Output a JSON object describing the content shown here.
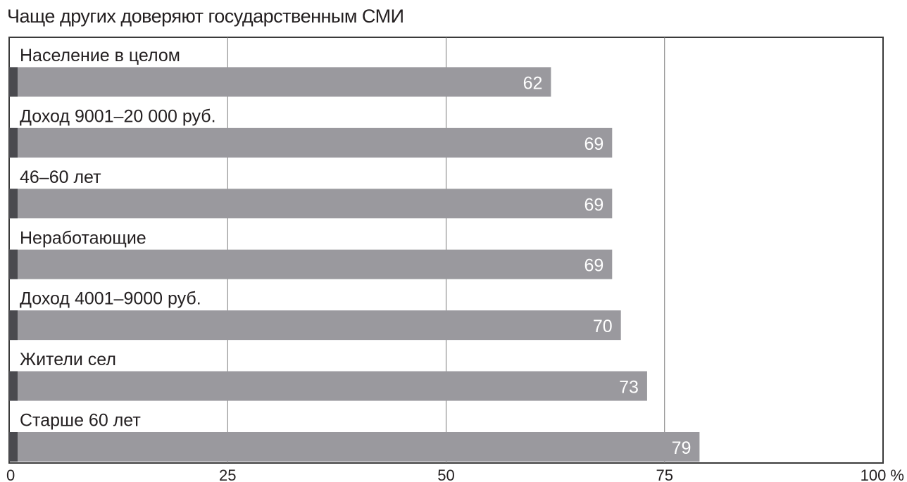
{
  "chart_data": {
    "type": "bar",
    "orientation": "horizontal",
    "title": "Чаще других доверяют государственным СМИ",
    "categories": [
      "Население в целом",
      "Доход 9001–20 000 руб.",
      "46–60 лет",
      "Неработающие",
      "Доход 4001–9000 руб.",
      "Жители сел",
      "Старше 60 лет"
    ],
    "values": [
      62,
      69,
      69,
      69,
      70,
      73,
      79
    ],
    "xlim": [
      0,
      100
    ],
    "x_ticks": [
      "0",
      "25",
      "50",
      "75",
      "100 %"
    ],
    "tick_values": [
      0,
      25,
      50,
      75,
      100
    ],
    "grid": true,
    "colors": {
      "bar": "#9a999e",
      "bar_edge": "#4a4a4f",
      "value_label": "#ffffff",
      "grid": "#7a7a7a",
      "frame": "#3a3a3a",
      "text": "#231f20"
    }
  }
}
